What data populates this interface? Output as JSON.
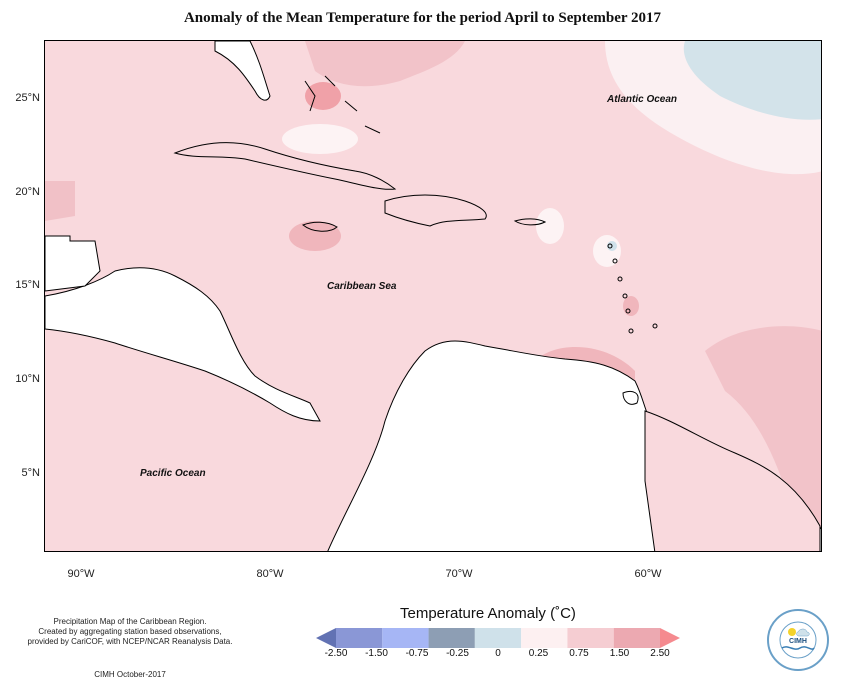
{
  "title": "Anomaly of the Mean Temperature for the period April to September 2017",
  "lat_labels": [
    "25°N",
    "20°N",
    "15°N",
    "10°N",
    "5°N"
  ],
  "lon_labels": [
    "90°W",
    "80°W",
    "70°W",
    "60°W"
  ],
  "oceans": {
    "atlantic": "Atlantic Ocean",
    "caribbean": "Caribbean Sea",
    "pacific": "Pacific Ocean"
  },
  "legend": {
    "title": "Temperature Anomaly (˚C)",
    "ticks": [
      "-2.50",
      "-1.50",
      "-0.75",
      "-0.25",
      "0",
      "0.25",
      "0.75",
      "1.50",
      "2.50"
    ],
    "colors": [
      "#6272b3",
      "#8a97d6",
      "#a6b6f5",
      "#8d9eb4",
      "#cfe1ea",
      "#fdf0f1",
      "#f5cdd2",
      "#eca9b1",
      "#f58a8f"
    ]
  },
  "credit": {
    "line1": "Precipitation Map of the Caribbean Region.",
    "line2": "Created by aggregating station based observations,",
    "line3": "provided by CariCOF, with NCEP/NCAR Reanalysis Data.",
    "footer": "CIMH October-2017"
  },
  "logo_text": "CIMH"
}
